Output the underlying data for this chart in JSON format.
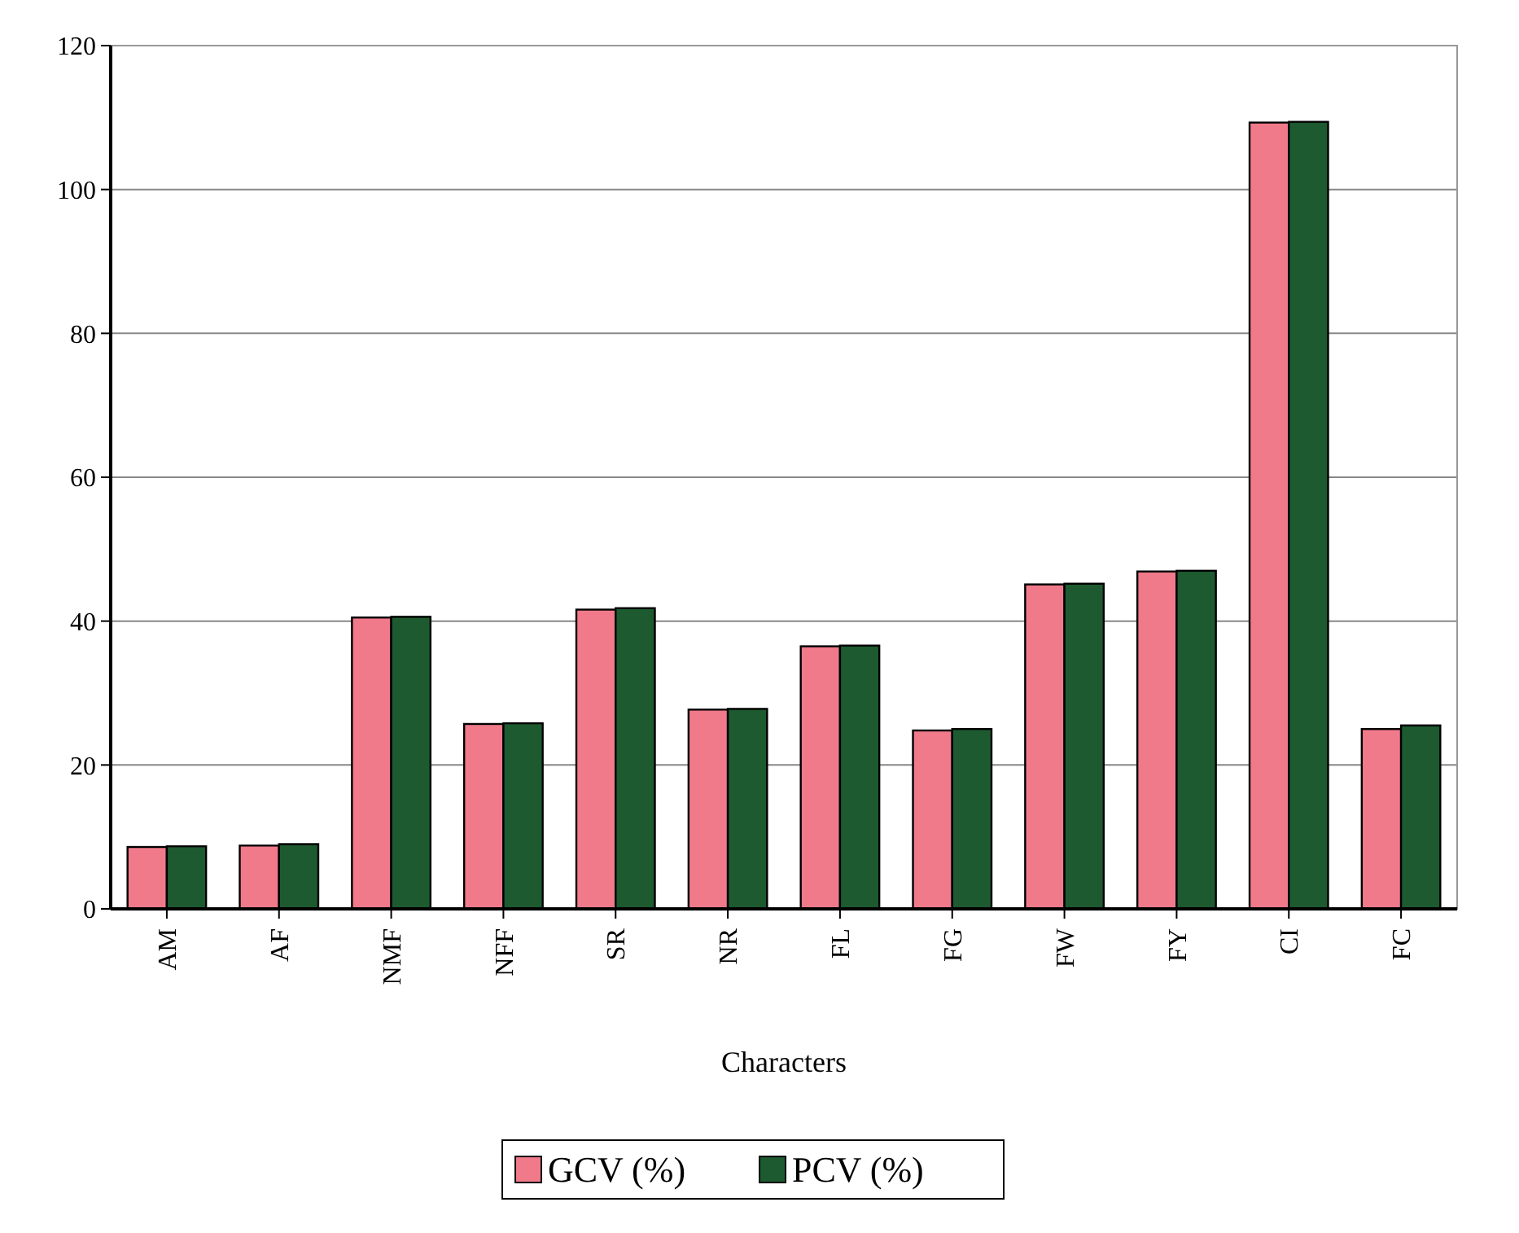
{
  "chart_data": {
    "type": "bar",
    "xlabel": "Characters",
    "categories": [
      "AM",
      "AF",
      "NMF",
      "NFF",
      "SR",
      "NR",
      "FL",
      "FG",
      "FW",
      "FY",
      "CI",
      "FC"
    ],
    "series": [
      {
        "name": "GCV (%)",
        "color": "#f07a8a",
        "values": [
          8.6,
          8.8,
          40.5,
          25.7,
          41.6,
          27.7,
          36.5,
          24.8,
          45.1,
          46.9,
          109.3,
          25
        ]
      },
      {
        "name": "PCV (%)",
        "color": "#1e5a30",
        "values": [
          8.7,
          9,
          40.6,
          25.8,
          41.8,
          27.8,
          36.6,
          25,
          45.2,
          47,
          109.4,
          25.5
        ]
      }
    ],
    "ylim": [
      0,
      120
    ],
    "yticks": [
      0,
      20,
      40,
      60,
      80,
      100,
      120
    ],
    "grid": "y",
    "legend": "bottom"
  }
}
